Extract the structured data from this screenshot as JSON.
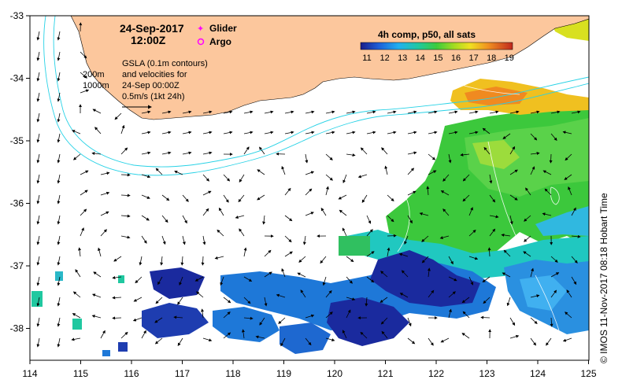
{
  "map": {
    "date": "24-Sep-2017",
    "time": "12:00Z",
    "legend_glider": "Glider",
    "legend_argo": "Argo",
    "depth_200": "200m",
    "depth_1000": "1000m",
    "gsla_line1": "GSLA (0.1m contours)",
    "gsla_line2": "and velocities for",
    "gsla_line3": "24-Sep 00:00Z",
    "scale_label": "0.5m/s (1kt 24h)",
    "colorbar_title": "4h comp, p50, all sats",
    "colorbar_ticks": [
      "11",
      "12",
      "13",
      "14",
      "15",
      "16",
      "17",
      "18",
      "19"
    ],
    "lon_ticks": [
      "114",
      "115",
      "116",
      "117",
      "118",
      "119",
      "120",
      "121",
      "122",
      "123",
      "124",
      "125"
    ],
    "lat_ticks": [
      "-33",
      "-34",
      "-35",
      "-36",
      "-37",
      "-38"
    ],
    "credit": "© IMOS 11-Nov-2017 08:18 Hobart Time",
    "colors": {
      "land": "#fcc79d",
      "bathy": "#28d2e6",
      "glider": "#ff00ff",
      "argo": "#ff00ff",
      "sst_low": "#1b2a9e",
      "sst_high": "#c0281f"
    }
  }
}
